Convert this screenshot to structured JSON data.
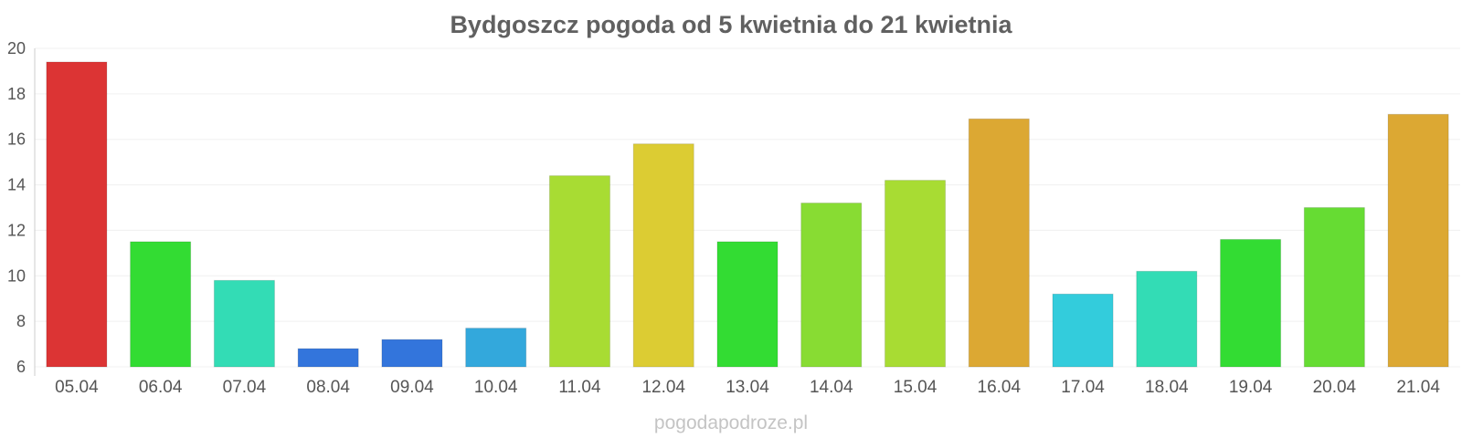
{
  "chart_data": {
    "type": "bar",
    "title": "Bydgoszcz pogoda od 5 kwietnia do 21 kwietnia",
    "xlabel": "",
    "ylabel": "",
    "ylim": [
      6,
      20
    ],
    "yticks": [
      6,
      8,
      10,
      12,
      14,
      16,
      18,
      20
    ],
    "grid": true,
    "legend": "none",
    "categories": [
      "05.04",
      "06.04",
      "07.04",
      "08.04",
      "09.04",
      "10.04",
      "11.04",
      "12.04",
      "13.04",
      "14.04",
      "15.04",
      "16.04",
      "17.04",
      "18.04",
      "19.04",
      "20.04",
      "21.04"
    ],
    "values": [
      19.4,
      11.5,
      9.8,
      6.8,
      7.2,
      7.7,
      14.4,
      15.8,
      11.5,
      13.2,
      14.2,
      16.9,
      9.2,
      10.2,
      11.6,
      13.0,
      17.1
    ],
    "colors": [
      "#dc3434",
      "#33dc33",
      "#33dcb5",
      "#3375dc",
      "#3375dc",
      "#33a8dc",
      "#a8dc33",
      "#dccc33",
      "#33dc33",
      "#88dc33",
      "#a8dc33",
      "#dca833",
      "#33ccdc",
      "#33dcb5",
      "#33dc33",
      "#66dc33",
      "#dca833"
    ]
  },
  "watermark": "pogodapodroze.pl"
}
